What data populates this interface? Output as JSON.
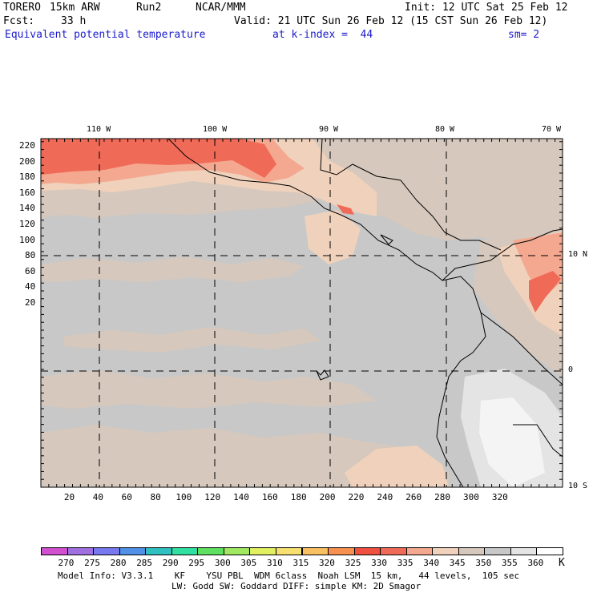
{
  "header": {
    "model": "TORERO",
    "resolution": "15km ARW",
    "run": "Run2",
    "org": "NCAR/MMM",
    "init": "Init: 12 UTC Sat 25 Feb 12",
    "fcst_label": "Fcst:",
    "fcst_value": "33 h",
    "valid": "Valid: 21 UTC Sun 26 Feb 12 (15 CST Sun 26 Feb 12)",
    "field": "Equivalent potential temperature",
    "level": "at k-index =  44",
    "smoothing": "sm= 2"
  },
  "map": {
    "lon_labels": [
      "110 W",
      "100 W",
      "90 W",
      "80 W",
      "70 W"
    ],
    "lat_labels": [
      "10 N",
      "0",
      "10 S"
    ],
    "x_ticks": [
      "20",
      "40",
      "60",
      "80",
      "100",
      "120",
      "140",
      "160",
      "180",
      "200",
      "220",
      "240",
      "260",
      "280",
      "300",
      "320"
    ],
    "y_ticks": [
      "220",
      "200",
      "180",
      "160",
      "140",
      "120",
      "100",
      "80",
      "60",
      "40",
      "20"
    ]
  },
  "colorbar": {
    "unit": "K",
    "labels": [
      "270",
      "275",
      "280",
      "285",
      "290",
      "295",
      "300",
      "305",
      "310",
      "315",
      "320",
      "325",
      "330",
      "335",
      "340",
      "345",
      "350",
      "355",
      "360"
    ],
    "colors": [
      "#d050d0",
      "#a070e0",
      "#7878f0",
      "#5090e8",
      "#30c0c0",
      "#30e0a0",
      "#60e060",
      "#a0e860",
      "#e0f060",
      "#f8e070",
      "#f8c060",
      "#f89050",
      "#f05040",
      "#f06a58",
      "#f4a890",
      "#f0d2bc",
      "#d6c8bc",
      "#c8c8c8",
      "#e4e4e4",
      "#ffffff"
    ]
  },
  "footer": {
    "line1": "Model Info: V3.3.1    KF    YSU PBL  WDM 6class  Noah LSM  15 km,   44 levels,  105 sec",
    "line2": "LW: Godd SW: Goddard DIFF: simple KM: 2D Smagor"
  }
}
